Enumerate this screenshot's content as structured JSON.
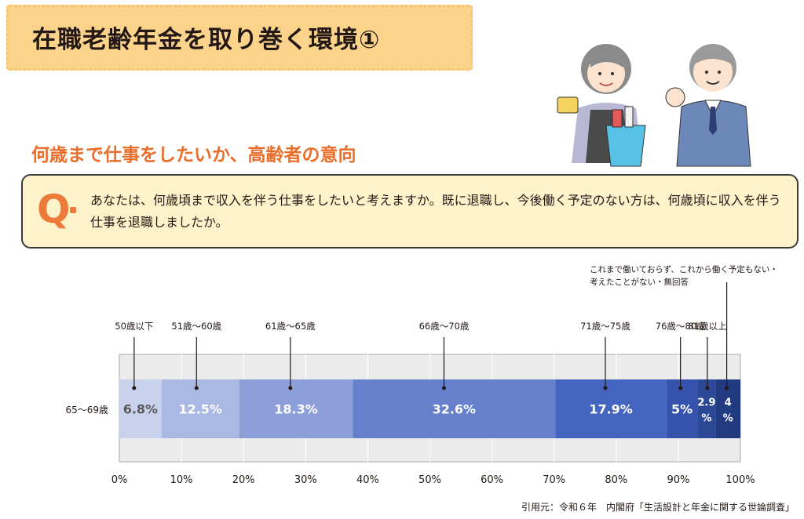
{
  "header": {
    "title": "在職老齢年金を取り巻く環境①"
  },
  "subtitle": "何歳まで仕事をしたいか、高齢者の意向",
  "question": {
    "label": "Q",
    "text": "あなたは、何歳頃まで収入を伴う仕事をしたいと考えますか。既に退職し、今後働く予定のない方は、何歳頃に収入を伴う仕事を退職しましたか。"
  },
  "note": {
    "line1": "これまで働いておらず、これから働く予定もない・",
    "line2": "考えたことがない・無回答"
  },
  "citation": "引用元：令和６年　内閣府「生活設計と年金に関する世論調査」",
  "chart_data": {
    "type": "bar",
    "orientation": "horizontal-stacked",
    "categories": [
      "65～69歳"
    ],
    "series": [
      {
        "name": "50歳以下",
        "values": [
          6.8
        ],
        "label": "6.8%",
        "color": "#c8d2ec"
      },
      {
        "name": "51歳～60歳",
        "values": [
          12.5
        ],
        "label": "12.5%",
        "color": "#a9b9e4"
      },
      {
        "name": "61歳～65歳",
        "values": [
          18.3
        ],
        "label": "18.3%",
        "color": "#8c9fd9"
      },
      {
        "name": "66歳～70歳",
        "values": [
          32.6
        ],
        "label": "32.6%",
        "color": "#6680cc"
      },
      {
        "name": "71歳～75歳",
        "values": [
          17.9
        ],
        "label": "17.9%",
        "color": "#4465bf"
      },
      {
        "name": "76歳～80歳",
        "values": [
          5.0
        ],
        "label": "5%",
        "color": "#3553ad"
      },
      {
        "name": "81歳以上",
        "values": [
          2.9
        ],
        "label": "2.9%",
        "color": "#2c4796"
      },
      {
        "name": "",
        "values": [
          4.0
        ],
        "label": "4%",
        "color": "#213a80"
      }
    ],
    "xlim": [
      0,
      100
    ],
    "xticks": [
      "0%",
      "10%",
      "20%",
      "30%",
      "40%",
      "50%",
      "60%",
      "70%",
      "80%",
      "90%",
      "100%"
    ],
    "grid": true,
    "legend": "callouts-above"
  }
}
